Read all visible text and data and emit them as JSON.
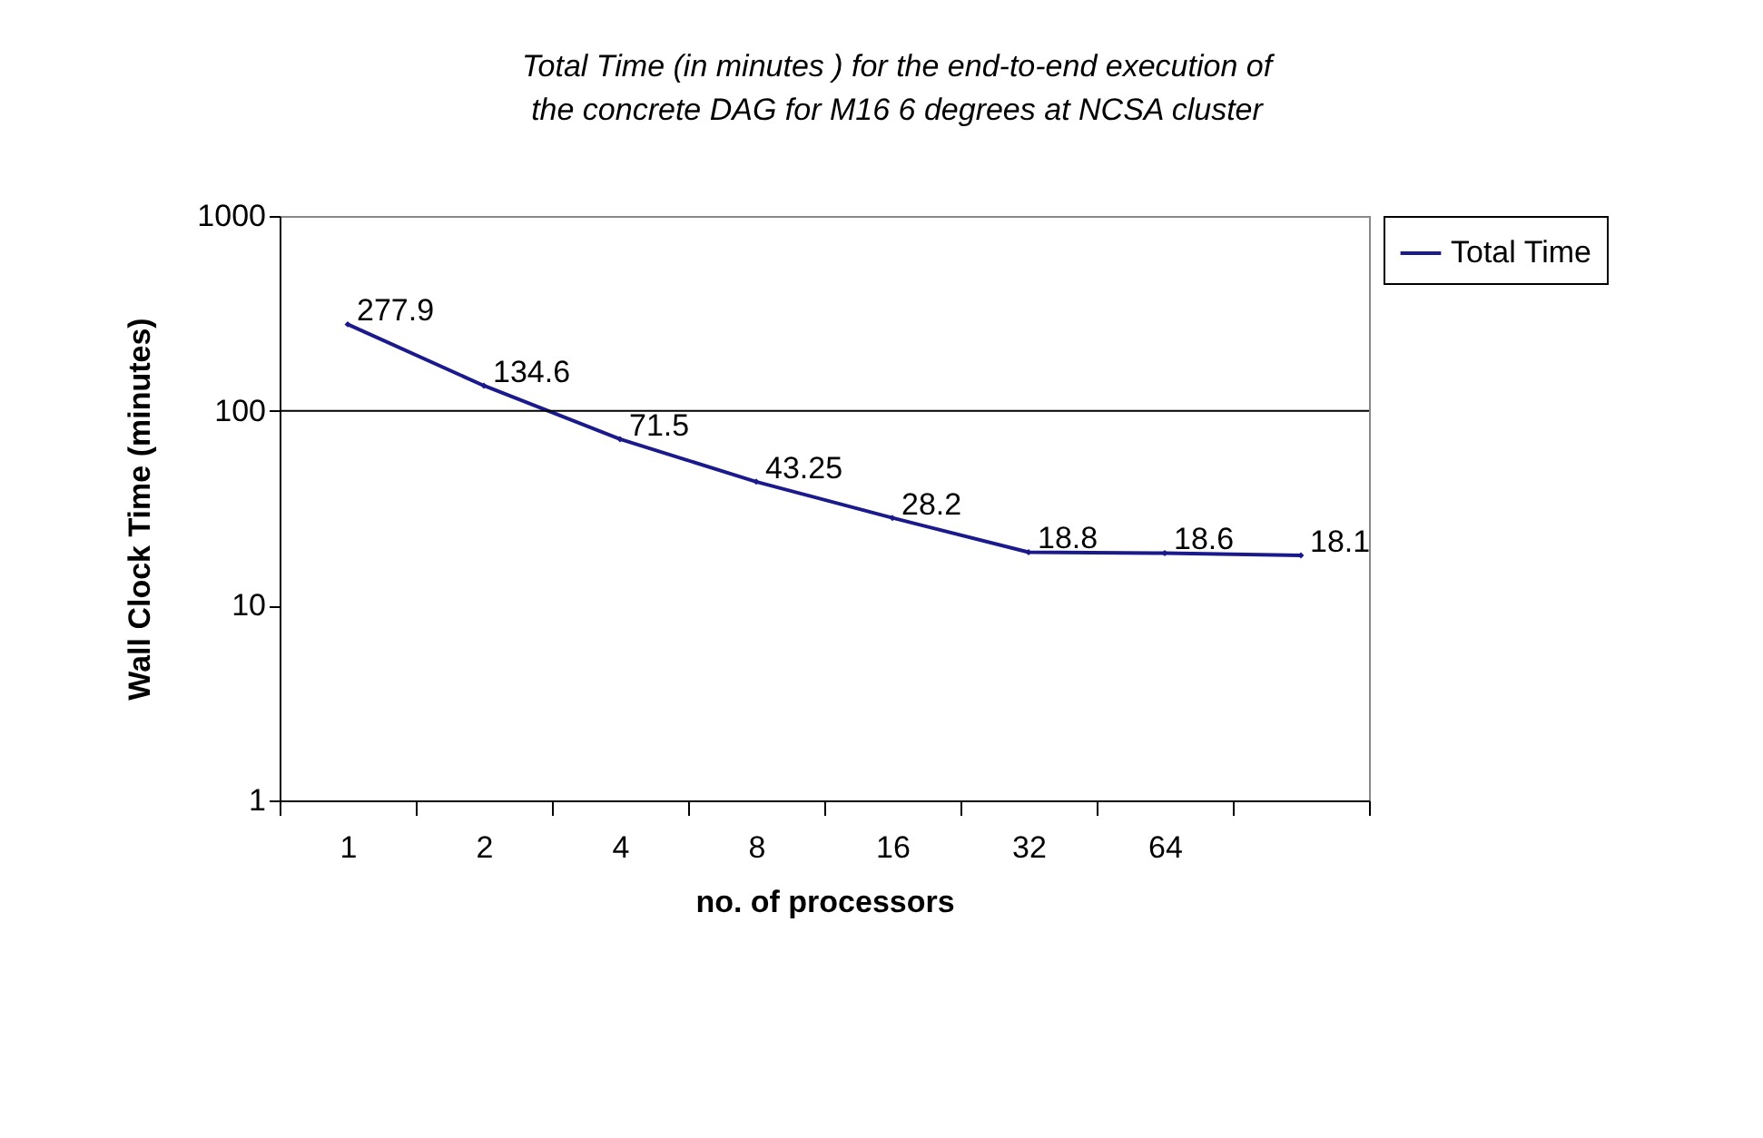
{
  "chart_data": {
    "type": "line",
    "title": [
      "Total Time (in minutes ) for the end-to-end execution of",
      "the concrete DAG for M16 6 degrees at NCSA cluster"
    ],
    "xlabel": "no. of processors",
    "ylabel": "Wall Clock Time (minutes)",
    "categories": [
      "1",
      "2",
      "4",
      "8",
      "16",
      "32",
      "64",
      null
    ],
    "series": [
      {
        "name": "Total Time",
        "color": "#1a1a8c",
        "values": [
          277.9,
          134.6,
          71.5,
          43.25,
          28.2,
          18.8,
          18.6,
          18.1
        ]
      }
    ],
    "log": "y",
    "ylim": [
      1,
      1000
    ],
    "yticks": [
      1,
      10,
      100,
      1000
    ],
    "ref_lines": [
      {
        "axis": "y",
        "value": 100
      }
    ],
    "data_labels": true,
    "legend": "right",
    "marker": "diamond",
    "line_style": "solid"
  }
}
